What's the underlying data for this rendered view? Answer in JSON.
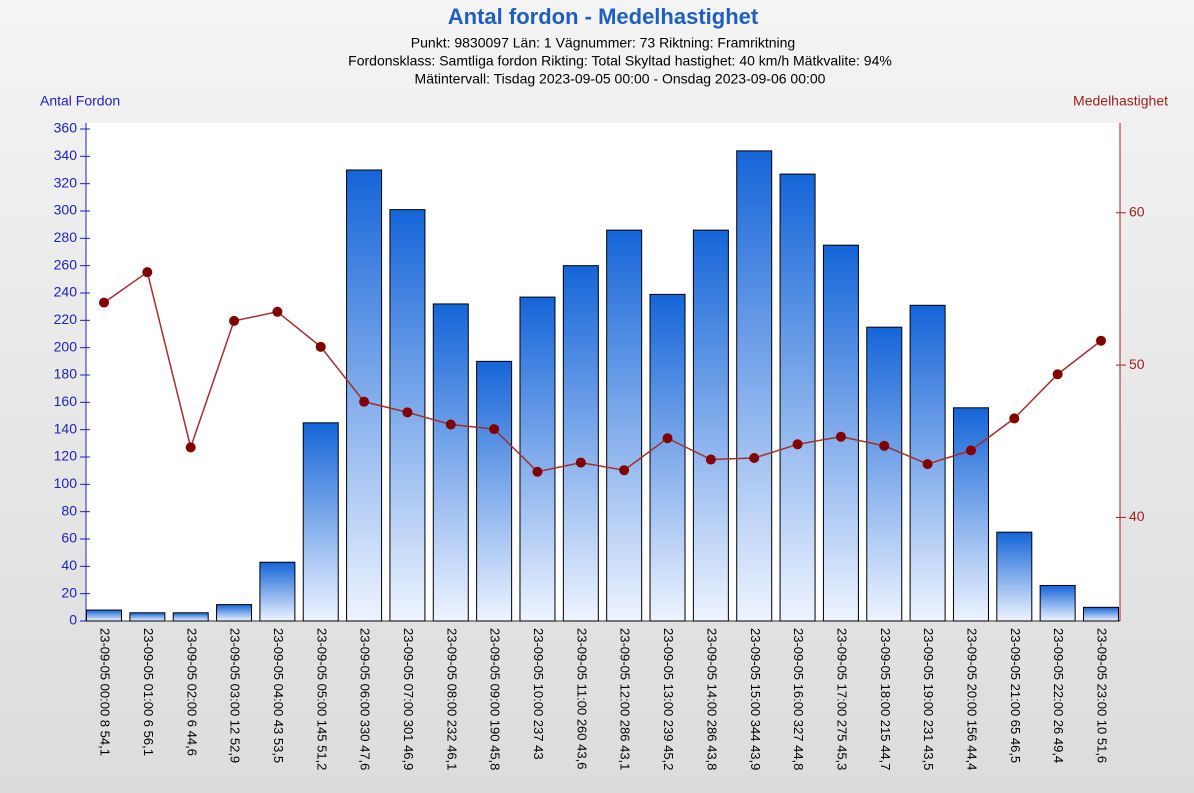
{
  "chart_data": {
    "type": "bar",
    "title": "Antal fordon - Medelhastighet",
    "subtitle": [
      "Punkt: 9830097  Län: 1  Vägnummer: 73 Riktning: Framriktning",
      "Fordonsklass: Samtliga fordon Rikting: Total Skyltad hastighet: 40 km/h Mätkvalite: 94%",
      "Mätintervall: Tisdag 2023-09-05 00:00 - Onsdag 2023-09-06 00:00"
    ],
    "ylabel": "Antal Fordon",
    "y2label": "Medelhastighet",
    "categories": [
      "23-09-05 00:00  8  54,1",
      "23-09-05 01:00  6  56,1",
      "23-09-05 02:00  6  44,6",
      "23-09-05 03:00  12  52,9",
      "23-09-05 04:00  43  53,5",
      "23-09-05 05:00  145  51,2",
      "23-09-05 06:00  330  47,6",
      "23-09-05 07:00  301  46,9",
      "23-09-05 08:00  232  46,1",
      "23-09-05 09:00  190  45,8",
      "23-09-05 10:00  237  43",
      "23-09-05 11:00  260  43,6",
      "23-09-05 12:00  286  43,1",
      "23-09-05 13:00  239  45,2",
      "23-09-05 14:00  286  43,8",
      "23-09-05 15:00  344  43,9",
      "23-09-05 16:00  327  44,8",
      "23-09-05 17:00  275  45,3",
      "23-09-05 18:00  215  44,7",
      "23-09-05 19:00  231  43,5",
      "23-09-05 20:00  156  44,4",
      "23-09-05 21:00  65  46,5",
      "23-09-05 22:00  26  49,4",
      "23-09-05 23:00  10  51,6"
    ],
    "series": [
      {
        "color": "#1565d8",
        "values": [
          8,
          6,
          6,
          12,
          43,
          145,
          330,
          301,
          232,
          190,
          237,
          260,
          286,
          239,
          286,
          344,
          327,
          275,
          215,
          231,
          156,
          65,
          26,
          10
        ]
      },
      {
        "color": "#a03030",
        "axis": "y2",
        "values": [
          54.1,
          56.1,
          44.6,
          52.9,
          53.5,
          51.2,
          47.6,
          46.9,
          46.1,
          45.8,
          43,
          43.6,
          43.1,
          45.2,
          43.8,
          43.9,
          44.8,
          45.3,
          44.7,
          43.5,
          44.4,
          46.5,
          49.4,
          51.6
        ]
      }
    ],
    "ylim": [
      0,
      360
    ],
    "yticks": [
      0,
      20,
      40,
      60,
      80,
      100,
      120,
      140,
      160,
      180,
      200,
      220,
      240,
      260,
      280,
      300,
      320,
      340,
      360
    ],
    "y2lim": [
      33.2,
      65.5
    ],
    "y2ticks": [
      40,
      50,
      60
    ]
  }
}
